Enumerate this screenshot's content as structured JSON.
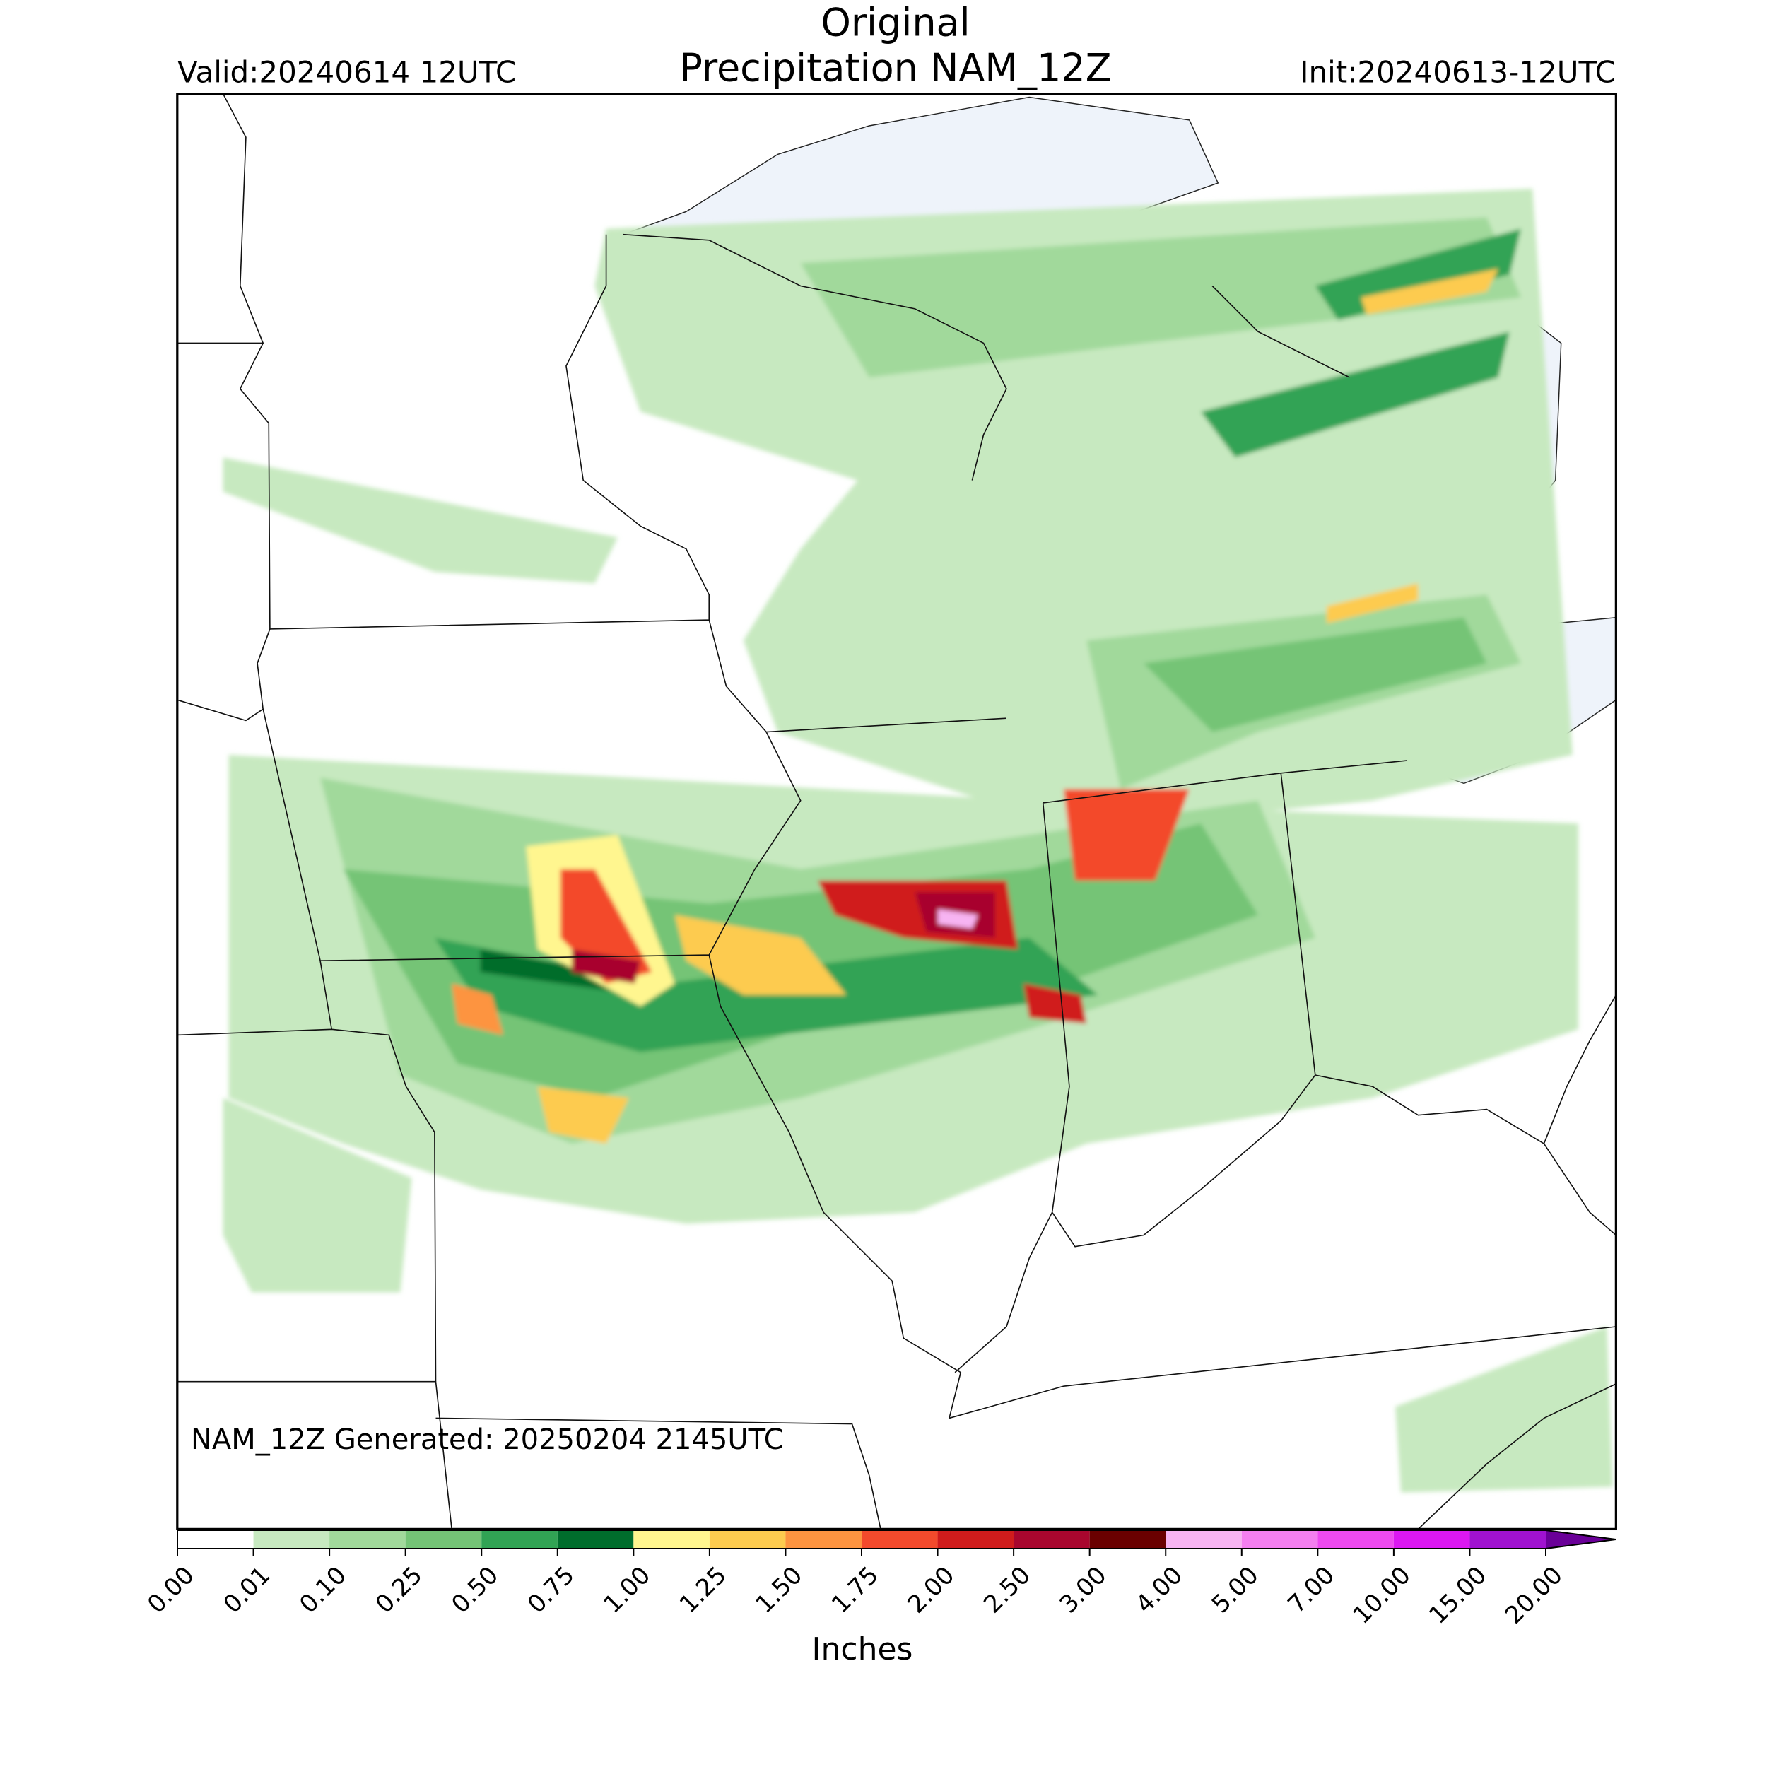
{
  "header": {
    "title": "Original",
    "subtitle": "Precipitation NAM_12Z",
    "valid": "Valid:20240614 12UTC",
    "init": "Init:20240613-12UTC"
  },
  "footer": "NAM_12Z Generated: 20250204 2145UTC",
  "colorbar": {
    "label": "Inches",
    "ticks": [
      {
        "value": 0,
        "label": "0.00"
      },
      {
        "value": 0.01,
        "label": "0.01"
      },
      {
        "value": 0.1,
        "label": "0.10"
      },
      {
        "value": 0.25,
        "label": "0.25"
      },
      {
        "value": 0.5,
        "label": "0.50"
      },
      {
        "value": 0.75,
        "label": "0.75"
      },
      {
        "value": 1,
        "label": "1.00"
      },
      {
        "value": 1.25,
        "label": "1.25"
      },
      {
        "value": 1.5,
        "label": "1.50"
      },
      {
        "value": 1.75,
        "label": "1.75"
      },
      {
        "value": 2,
        "label": "2.00"
      },
      {
        "value": 2.5,
        "label": "2.50"
      },
      {
        "value": 3,
        "label": "3.00"
      },
      {
        "value": 4,
        "label": "4.00"
      },
      {
        "value": 5,
        "label": "5.00"
      },
      {
        "value": 7,
        "label": "7.00"
      },
      {
        "value": 10,
        "label": "10.00"
      },
      {
        "value": 15,
        "label": "15.00"
      },
      {
        "value": 20,
        "label": "20.00"
      }
    ],
    "colors": [
      "#ffffff",
      "#c7e9c0",
      "#a1d99b",
      "#74c476",
      "#31a354",
      "#006d2c",
      "#fff68f",
      "#fdcb4f",
      "#fd9440",
      "#f34a2c",
      "#d01c1c",
      "#a8062e",
      "#6a0000",
      "#f7b4f2",
      "#f47ff0",
      "#ee4af0",
      "#dc18f2",
      "#a012d0"
    ],
    "extend_color": "#6a0098"
  }
}
